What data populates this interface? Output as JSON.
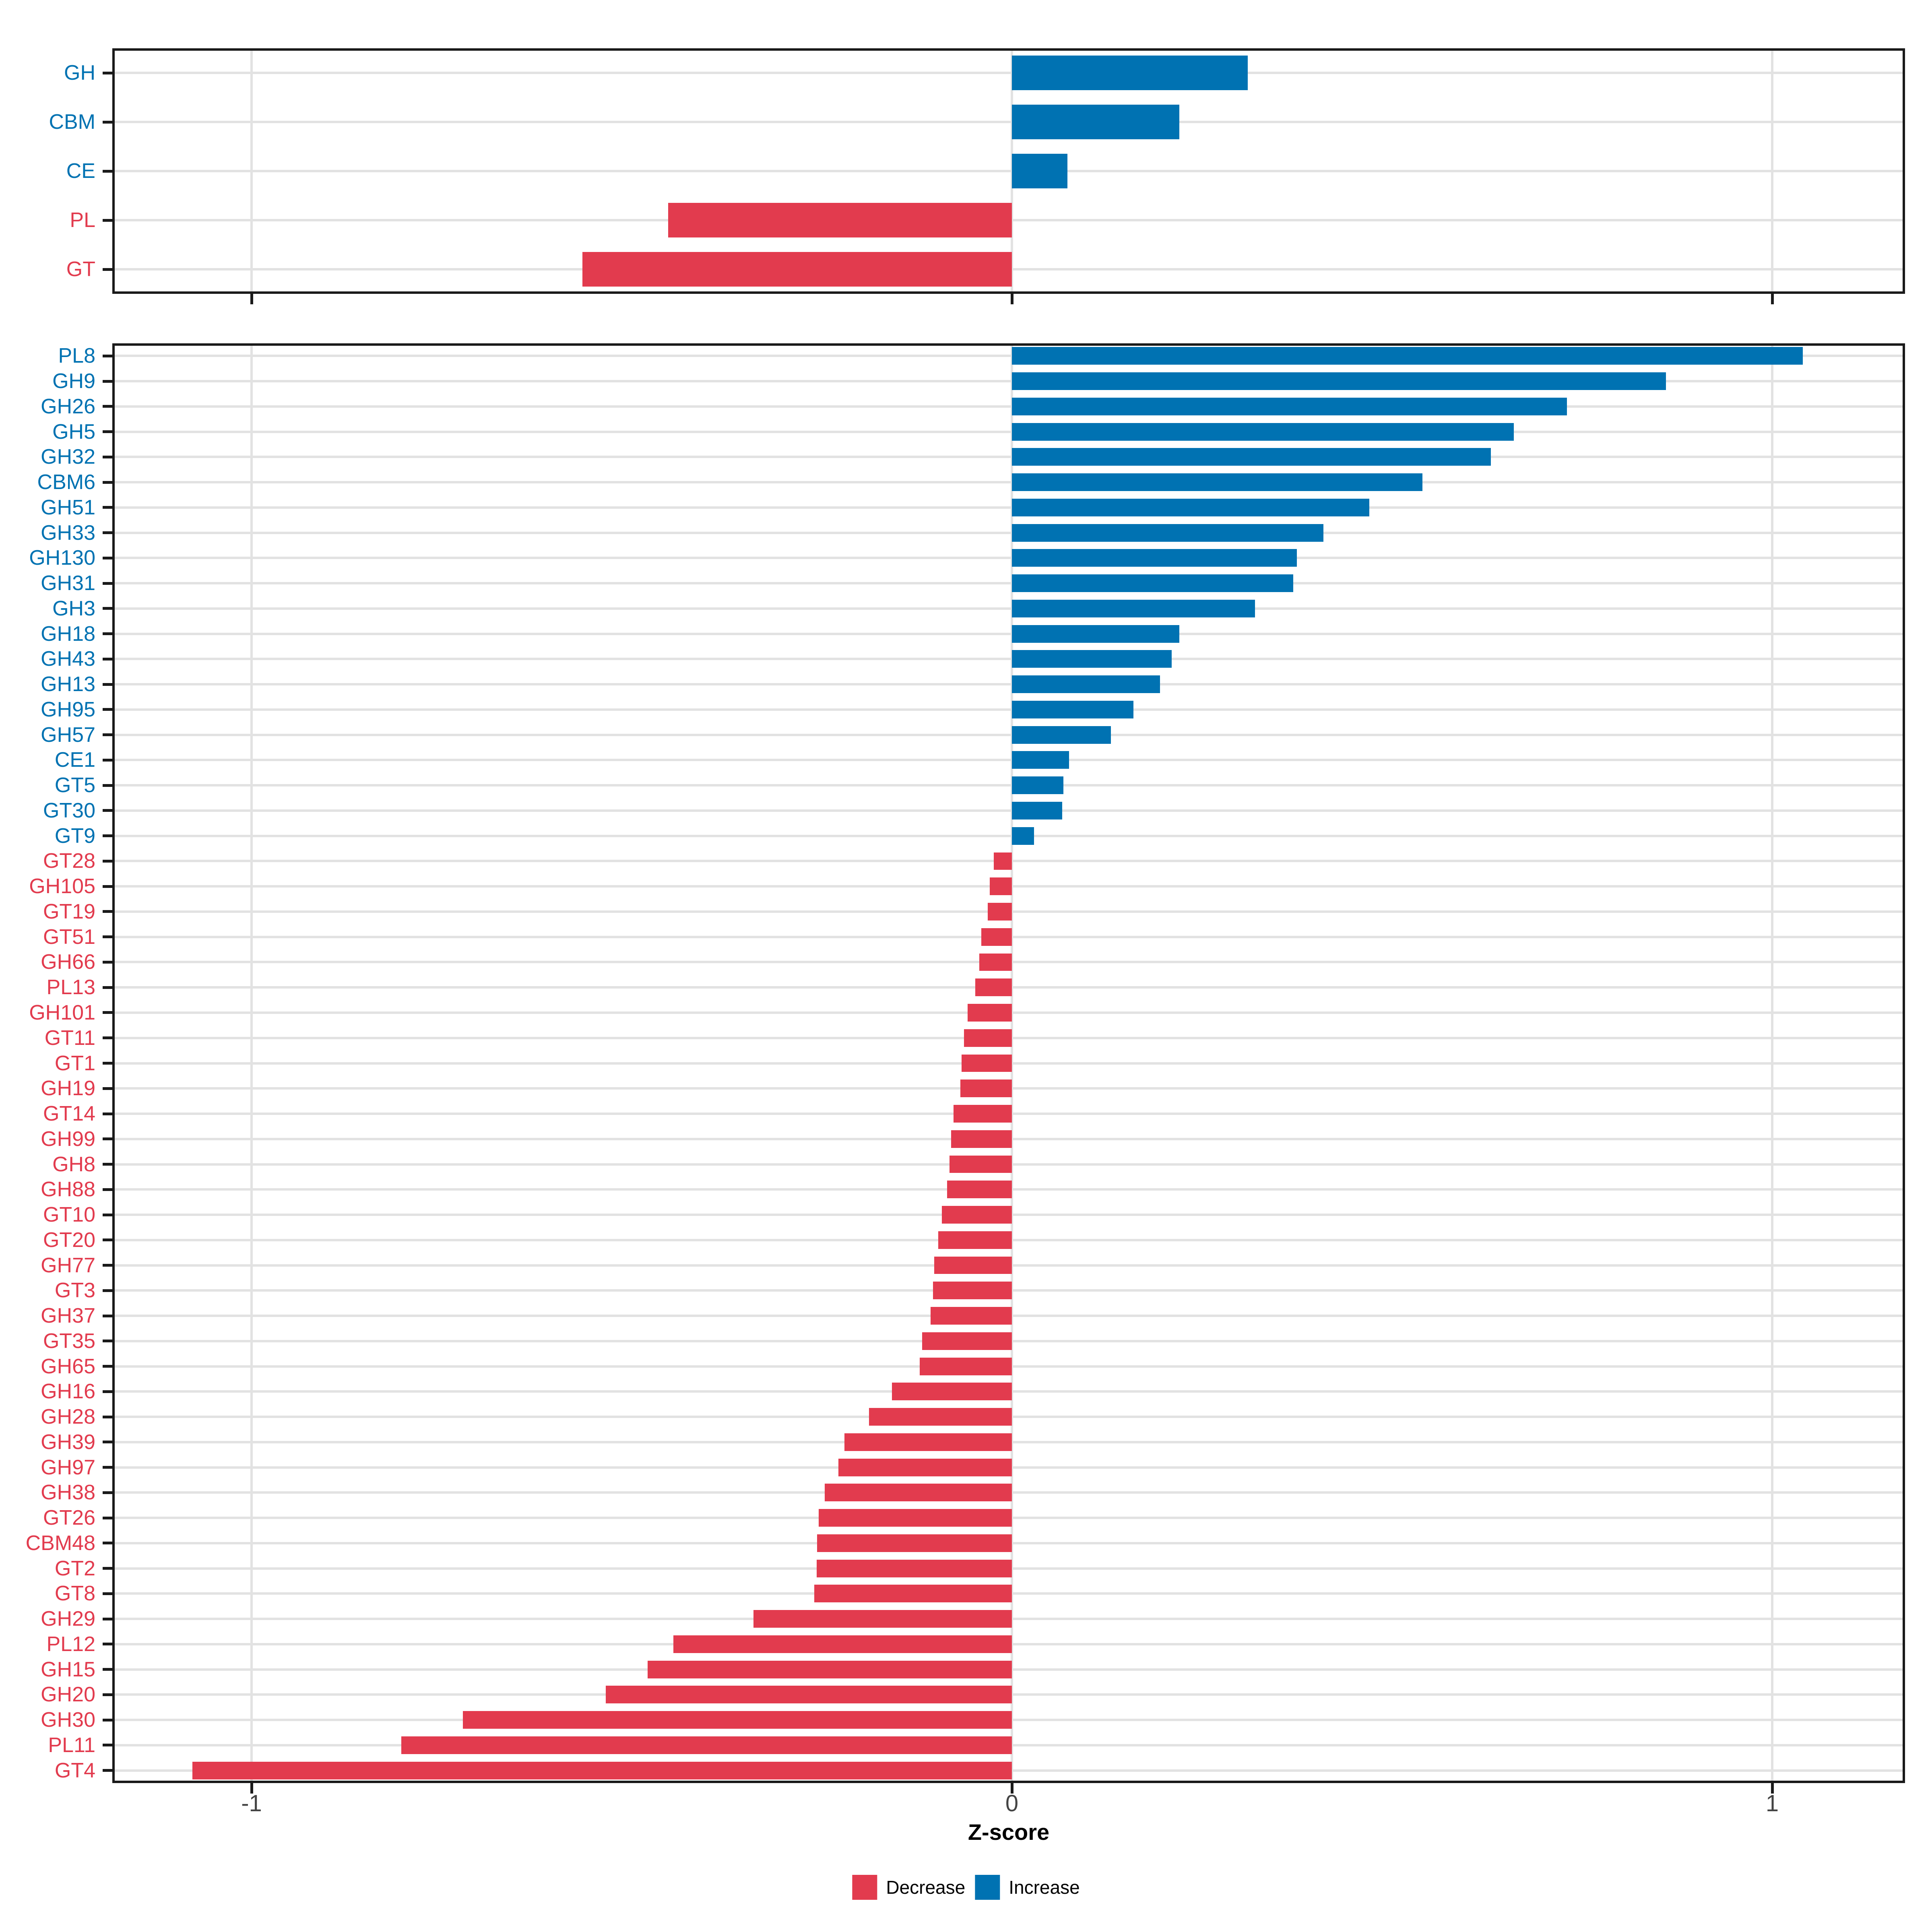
{
  "colors": {
    "increase": "#0072B2",
    "decrease": "#E23B4E",
    "grid": "#E2E2E2",
    "tick": "#1A1A1A",
    "tick_label": "#444444",
    "panel_border": "#1A1A1A",
    "background": "#FFFFFF"
  },
  "axis": {
    "title": "Z-score",
    "tick_labels": [
      "-1",
      "0",
      "1"
    ],
    "tick_values": [
      -1,
      0,
      1
    ]
  },
  "legend": {
    "items": [
      {
        "label": "Decrease",
        "color": "#E23B4E"
      },
      {
        "label": "Increase",
        "color": "#0072B2"
      }
    ]
  },
  "chart_data": [
    {
      "panel": "top",
      "type": "bar",
      "orientation": "horizontal",
      "title": "",
      "xlabel": "",
      "ylabel": "",
      "xlim": [
        -1.18,
        1.17
      ],
      "grid": "major-only",
      "legend_position": "none",
      "categories": [
        "GH",
        "CBM",
        "CE",
        "PL",
        "GT"
      ],
      "values": [
        0.31,
        0.22,
        0.073,
        -0.452,
        -0.565
      ]
    },
    {
      "panel": "bottom",
      "type": "bar",
      "orientation": "horizontal",
      "title": "",
      "xlabel": "Z-score",
      "ylabel": "",
      "xlim": [
        -1.18,
        1.17
      ],
      "grid": "major-only",
      "legend_position": "bottom",
      "categories": [
        "PL8",
        "GH9",
        "GH26",
        "GH5",
        "GH32",
        "CBM6",
        "GH51",
        "GH33",
        "GH130",
        "GH31",
        "GH3",
        "GH18",
        "GH43",
        "GH13",
        "GH95",
        "GH57",
        "CE1",
        "GT5",
        "GT30",
        "GT9",
        "GT28",
        "GH105",
        "GT19",
        "GT51",
        "GH66",
        "PL13",
        "GH101",
        "GT11",
        "GT1",
        "GH19",
        "GT14",
        "GH99",
        "GH8",
        "GH88",
        "GT10",
        "GT20",
        "GH77",
        "GT3",
        "GH37",
        "GT35",
        "GH65",
        "GH16",
        "GH28",
        "GH39",
        "GH97",
        "GH38",
        "GT26",
        "CBM48",
        "GT2",
        "GT8",
        "GH29",
        "PL12",
        "GH15",
        "GH20",
        "GH30",
        "PL11",
        "GT4"
      ],
      "values": [
        1.04,
        0.86,
        0.73,
        0.66,
        0.63,
        0.54,
        0.47,
        0.41,
        0.375,
        0.37,
        0.32,
        0.22,
        0.21,
        0.195,
        0.16,
        0.13,
        0.075,
        0.068,
        0.066,
        0.029,
        -0.024,
        -0.029,
        -0.032,
        -0.04,
        -0.043,
        -0.048,
        -0.058,
        -0.063,
        -0.066,
        -0.068,
        -0.077,
        -0.08,
        -0.082,
        -0.085,
        -0.092,
        -0.097,
        -0.102,
        -0.104,
        -0.107,
        -0.118,
        -0.121,
        -0.158,
        -0.188,
        -0.22,
        -0.228,
        -0.246,
        -0.254,
        -0.256,
        -0.257,
        -0.26,
        -0.34,
        -0.445,
        -0.479,
        -0.534,
        -0.722,
        -0.803,
        -1.078
      ]
    }
  ]
}
